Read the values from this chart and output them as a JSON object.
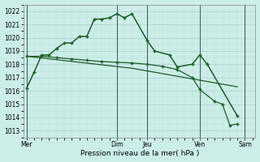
{
  "title": "Pression niveau de la mer( hPa )",
  "background_color": "#cceee8",
  "grid_color_major": "#aacccc",
  "grid_color_minor": "#c0ddd8",
  "line_color": "#1a5c28",
  "ylim": [
    1012.5,
    1022.5
  ],
  "yticks": [
    1013,
    1014,
    1015,
    1016,
    1017,
    1018,
    1019,
    1020,
    1021,
    1022
  ],
  "day_labels": [
    "Mer",
    "Dim",
    "Jeu",
    "Ven",
    "Sam"
  ],
  "vline_color": "#446666",
  "s1x": [
    0,
    0.5,
    1.0,
    1.5,
    2.0,
    2.5,
    3.0,
    3.5,
    4.0,
    4.5,
    5.0,
    5.5,
    6.0,
    6.5,
    7.0,
    8.0,
    8.5,
    9.5,
    10.0,
    11.0,
    11.5,
    12.0,
    14.0
  ],
  "s1y": [
    1016.2,
    1017.4,
    1018.7,
    1018.7,
    1019.2,
    1019.6,
    1019.6,
    1020.1,
    1020.1,
    1021.4,
    1021.4,
    1021.5,
    1021.8,
    1021.5,
    1021.8,
    1019.8,
    1019.0,
    1018.7,
    1017.8,
    1018.0,
    1018.7,
    1018.0,
    1014.1
  ],
  "s2x": [
    0,
    1,
    2,
    3,
    4,
    5,
    6,
    7,
    8,
    9,
    10,
    11,
    11.5,
    12.5,
    13.0,
    13.5,
    14.0
  ],
  "s2y": [
    1018.6,
    1018.6,
    1018.5,
    1018.4,
    1018.3,
    1018.2,
    1018.15,
    1018.1,
    1018.0,
    1017.85,
    1017.6,
    1017.0,
    1016.1,
    1015.2,
    1015.0,
    1013.4,
    1013.5
  ],
  "s3x": [
    0,
    7,
    14
  ],
  "s3y": [
    1018.6,
    1017.7,
    1016.3
  ],
  "day_x": [
    0,
    6.0,
    8.0,
    11.5,
    14.5
  ],
  "xlim": [
    -0.2,
    15.2
  ]
}
